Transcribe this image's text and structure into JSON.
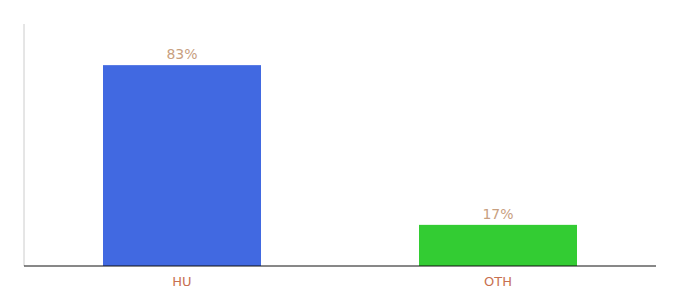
{
  "chart_data": {
    "type": "bar",
    "categories": [
      "HU",
      "OTH"
    ],
    "values": [
      83,
      17
    ],
    "value_labels": [
      "83%",
      "17%"
    ],
    "colors": [
      "#4169e1",
      "#33cc33"
    ],
    "ylim": [
      0,
      100
    ],
    "data_labels": true,
    "tick_labels": "x"
  }
}
